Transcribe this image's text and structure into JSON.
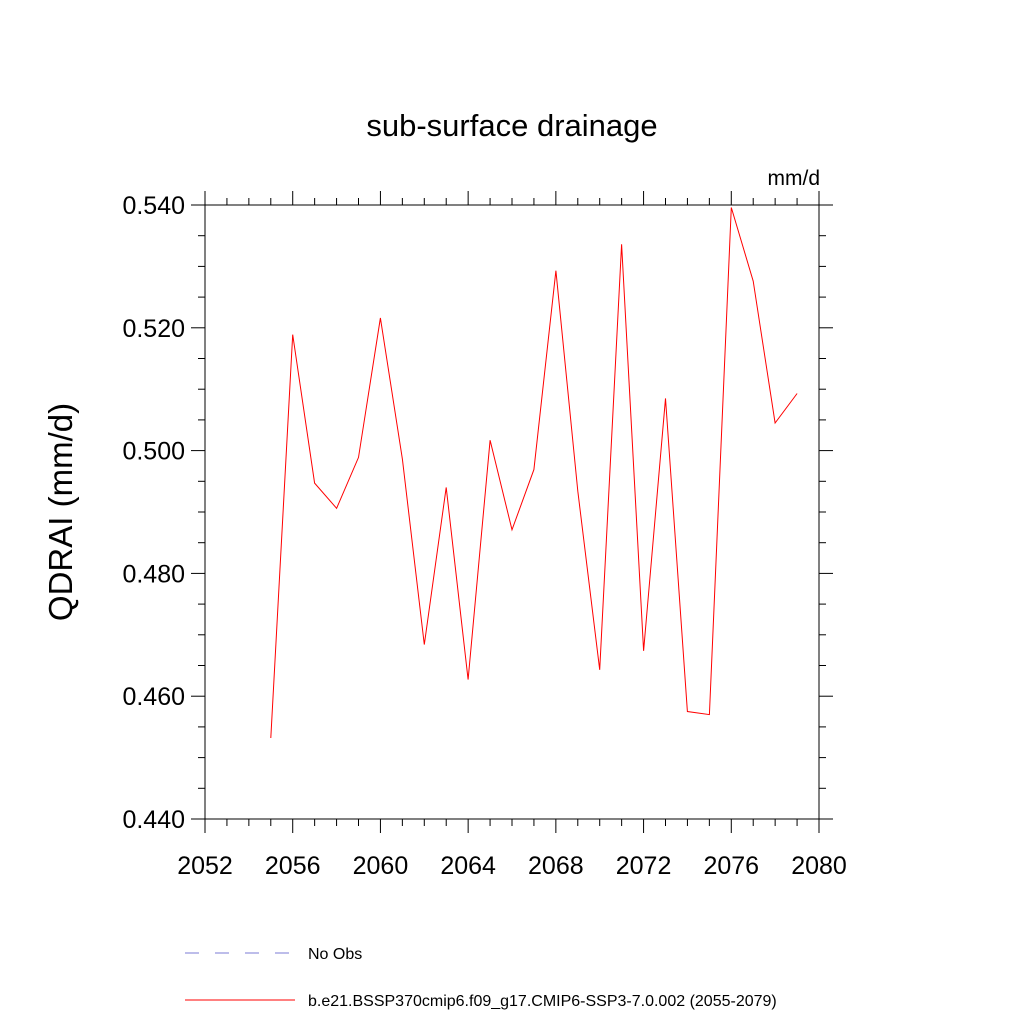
{
  "chart_data": {
    "type": "line",
    "title": "sub-surface drainage",
    "units_label": "mm/d",
    "xlabel": "",
    "ylabel": "QDRAI  (mm/d)",
    "xlim": [
      2052,
      2080
    ],
    "ylim": [
      0.44,
      0.54
    ],
    "x_ticks": [
      2052,
      2056,
      2060,
      2064,
      2068,
      2072,
      2076,
      2080
    ],
    "x_tick_labels": [
      "2052",
      "2056",
      "2060",
      "2064",
      "2068",
      "2072",
      "2076",
      "2080"
    ],
    "y_ticks": [
      0.44,
      0.46,
      0.48,
      0.5,
      0.52,
      0.54
    ],
    "y_tick_labels": [
      "0.440",
      "0.460",
      "0.480",
      "0.500",
      "0.520",
      "0.540"
    ],
    "grid": false,
    "legend_position": "bottom",
    "series": [
      {
        "name": "b.e21.BSSP370cmip6.f09_g17.CMIP6-SSP3-7.0.002 (2055-2079)",
        "color": "#ff0000",
        "style": "solid",
        "x": [
          2055,
          2056,
          2057,
          2058,
          2059,
          2060,
          2061,
          2062,
          2063,
          2064,
          2065,
          2066,
          2067,
          2068,
          2069,
          2070,
          2071,
          2072,
          2073,
          2074,
          2075,
          2076,
          2077,
          2078,
          2079
        ],
        "y": [
          0.4532,
          0.5189,
          0.4947,
          0.4906,
          0.4989,
          0.5216,
          0.4986,
          0.4684,
          0.494,
          0.4627,
          0.5017,
          0.4871,
          0.4969,
          0.5293,
          0.4934,
          0.4643,
          0.5336,
          0.4674,
          0.5085,
          0.4575,
          0.457,
          0.5396,
          0.5276,
          0.5045,
          0.5093
        ]
      }
    ],
    "legend": [
      {
        "label": "No Obs",
        "color": "#7b7bd6",
        "style": "dashed"
      },
      {
        "label": "b.e21.BSSP370cmip6.f09_g17.CMIP6-SSP3-7.0.002 (2055-2079)",
        "color": "#ff0000",
        "style": "solid"
      }
    ]
  }
}
